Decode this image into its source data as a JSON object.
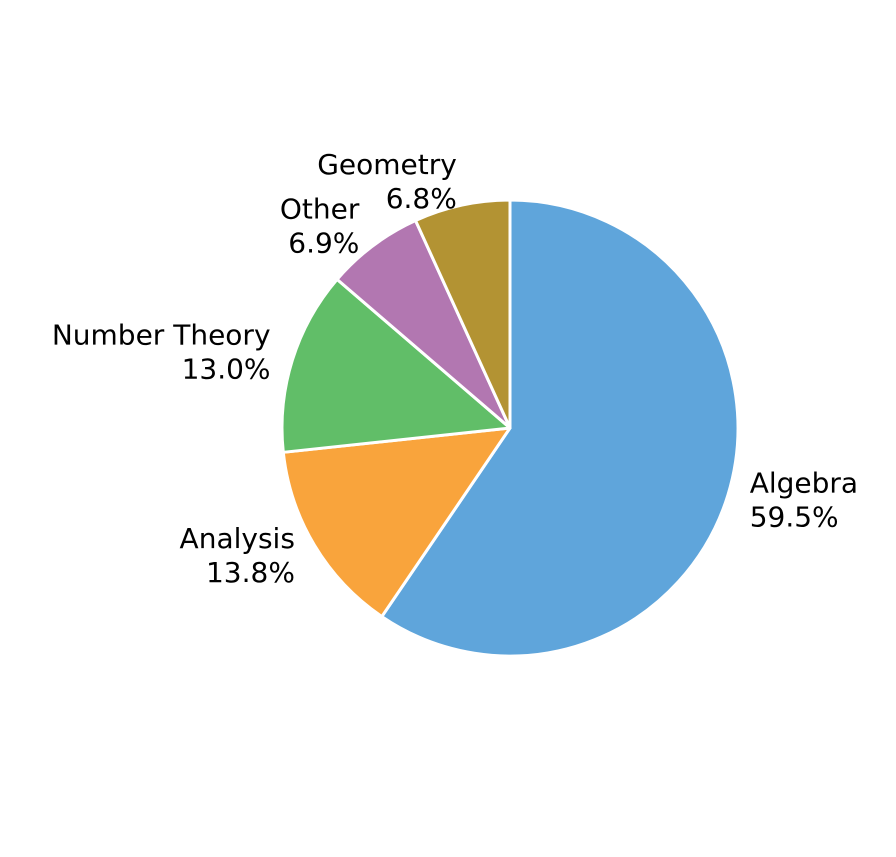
{
  "chart_data": {
    "type": "pie",
    "categories": [
      "Algebra",
      "Analysis",
      "Number Theory",
      "Other",
      "Geometry"
    ],
    "values": [
      59.5,
      13.8,
      13.0,
      6.9,
      6.8
    ],
    "value_labels": [
      "59.5%",
      "13.8%",
      "13.0%",
      "6.9%",
      "6.8%"
    ],
    "colors": [
      "#5fa5db",
      "#f9a43c",
      "#61be68",
      "#b277b1",
      "#b39333"
    ]
  }
}
